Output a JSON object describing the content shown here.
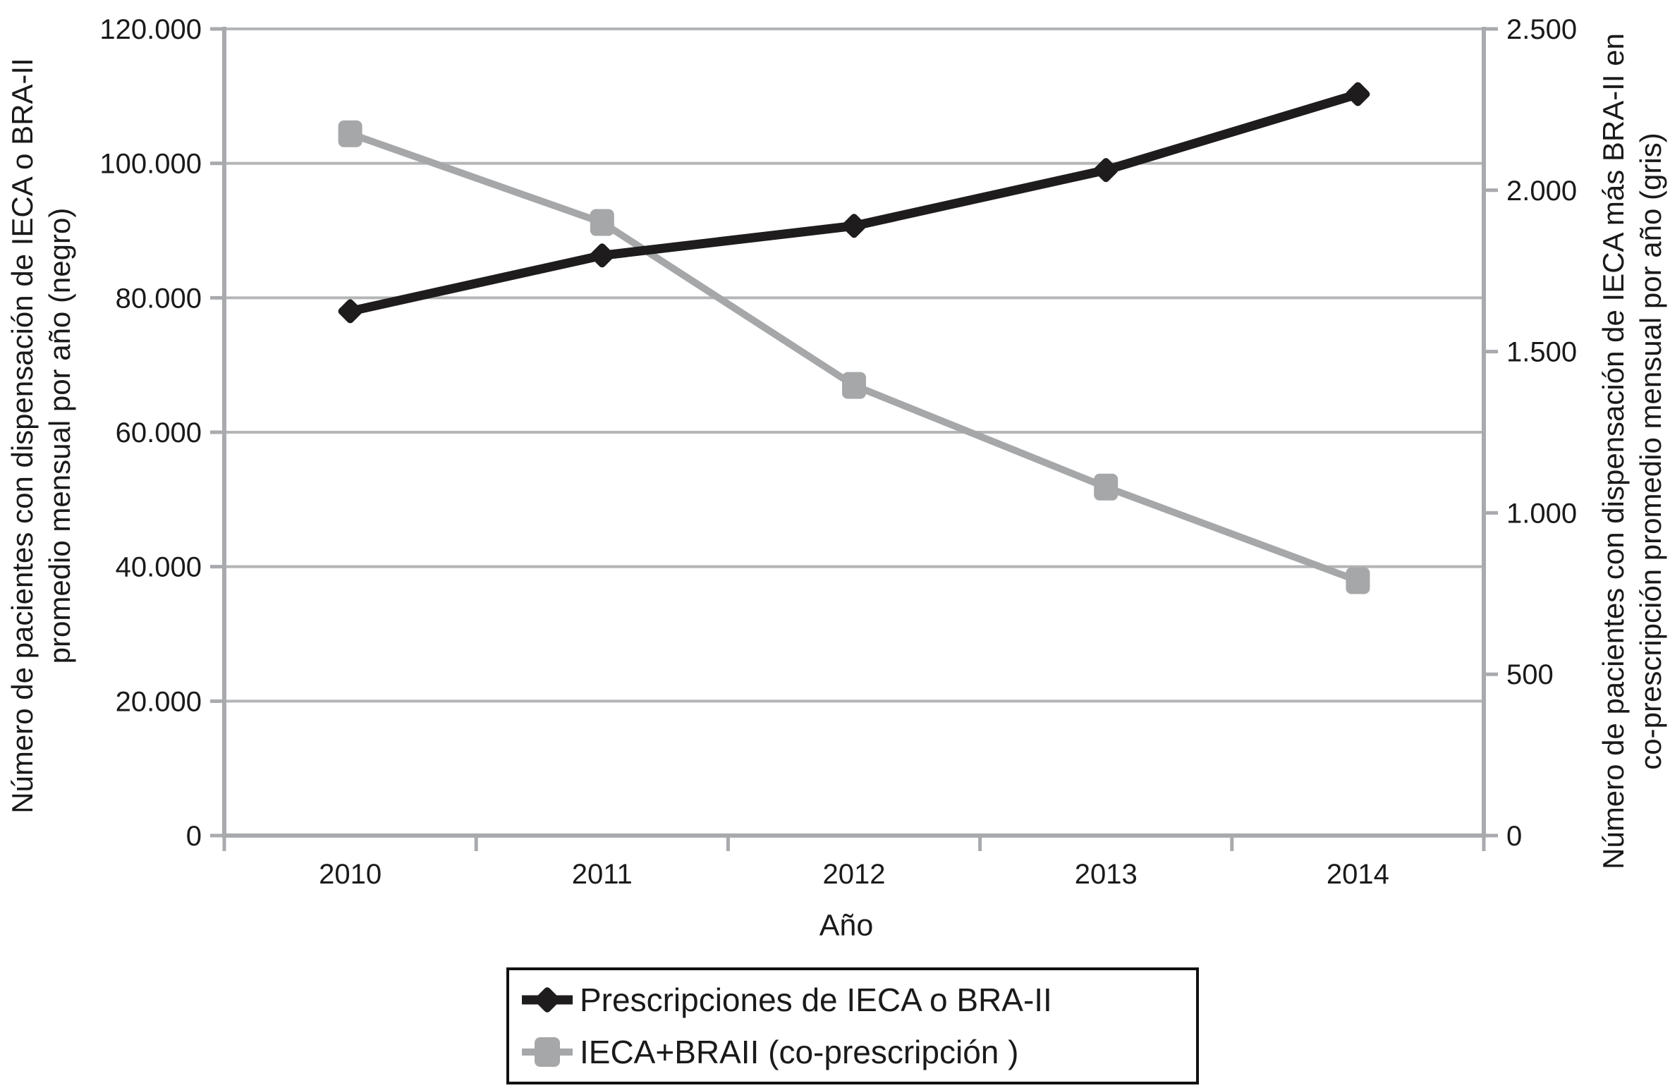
{
  "colors": {
    "black_series": "#1e1c1c",
    "gray_series": "#a5a7a9",
    "gridline": "#b3b5b7",
    "axis_line": "#a8aaad",
    "text": "#1a1a1a",
    "legend_border": "#111111"
  },
  "chart_data": {
    "type": "line",
    "grid": true,
    "legend_position": "bottom",
    "x_axis": {
      "title": "Año",
      "categories": [
        "2010",
        "2011",
        "2012",
        "2013",
        "2014"
      ]
    },
    "left_axis": {
      "title_line1": "Número de pacientes con dispensación de IECA o BRA-II",
      "title_line2": "promedio mensual por año (negro)",
      "min": 0,
      "max": 120000,
      "ticks": [
        {
          "value": 0,
          "label": "0"
        },
        {
          "value": 20000,
          "label": "20.000"
        },
        {
          "value": 40000,
          "label": "40.000"
        },
        {
          "value": 60000,
          "label": "60.000"
        },
        {
          "value": 80000,
          "label": "80.000"
        },
        {
          "value": 100000,
          "label": "100.000"
        },
        {
          "value": 120000,
          "label": "120.000"
        }
      ]
    },
    "right_axis": {
      "title_line1": "Número de pacientes con dispensación de IECA más BRA-II en",
      "title_line2": "co-prescripción promedio mensual por año (gris)",
      "min": 0,
      "max": 2500,
      "ticks": [
        {
          "value": 0,
          "label": "0"
        },
        {
          "value": 500,
          "label": "500"
        },
        {
          "value": 1000,
          "label": "1.000"
        },
        {
          "value": 1500,
          "label": "1.500"
        },
        {
          "value": 2000,
          "label": "2.000"
        },
        {
          "value": 2500,
          "label": "2.500"
        }
      ]
    },
    "series": [
      {
        "name": "Prescripciones de IECA o BRA-II",
        "axis": "left",
        "marker": "diamond",
        "color": "#1e1c1c",
        "values": [
          78000,
          86300,
          90700,
          99000,
          110300
        ]
      },
      {
        "name": "IECA+BRAII (co-prescripción )",
        "axis": "right",
        "marker": "square",
        "color": "#a5a7a9",
        "values": [
          2175,
          1900,
          1395,
          1080,
          790
        ]
      }
    ]
  }
}
